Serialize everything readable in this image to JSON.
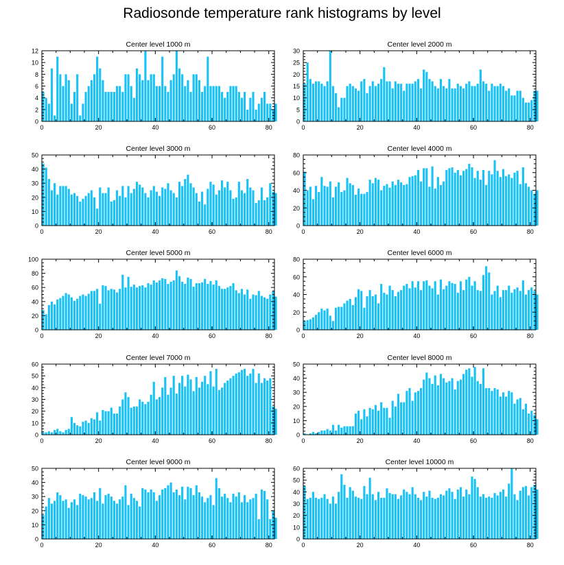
{
  "page": {
    "title": "Radiosonde temperature rank histograms by level"
  },
  "chart_data": [
    {
      "type": "bar",
      "title": "Center level 1000 m",
      "xlim": [
        0,
        82
      ],
      "ylim": [
        0,
        12
      ],
      "xticks": [
        0,
        20,
        40,
        60,
        80
      ],
      "yticks": [
        0,
        2,
        4,
        6,
        8,
        10,
        12
      ],
      "values": [
        5,
        4,
        3,
        9,
        1,
        11,
        8,
        6,
        8,
        7,
        3,
        5,
        8,
        1,
        3,
        5,
        6,
        7,
        8,
        11,
        9,
        7,
        5,
        5,
        5,
        5,
        6,
        6,
        5,
        8,
        8,
        6,
        4,
        9,
        8,
        7,
        12,
        7,
        8,
        8,
        6,
        6,
        11,
        6,
        5,
        7,
        8,
        12,
        9,
        8,
        6,
        7,
        5,
        8,
        8,
        7,
        5,
        6,
        11,
        6,
        6,
        6,
        6,
        5,
        4,
        5,
        6,
        6,
        6,
        5,
        4,
        5,
        2,
        4,
        5,
        2,
        3,
        4,
        5,
        3,
        3,
        2,
        3
      ]
    },
    {
      "type": "bar",
      "title": "Center level 2000 m",
      "xlim": [
        0,
        82
      ],
      "ylim": [
        0,
        30
      ],
      "xticks": [
        0,
        20,
        40,
        60,
        80
      ],
      "yticks": [
        0,
        5,
        10,
        15,
        20,
        25,
        30
      ],
      "values": [
        16,
        25,
        18,
        16,
        17,
        17,
        16,
        15,
        17,
        30,
        15,
        12,
        6,
        10,
        10,
        15,
        16,
        15,
        14,
        13,
        17,
        18,
        12,
        15,
        17,
        15,
        16,
        18,
        23,
        17,
        17,
        14,
        17,
        16,
        16,
        13,
        16,
        16,
        16,
        17,
        18,
        14,
        22,
        21,
        18,
        17,
        15,
        14,
        18,
        15,
        14,
        18,
        14,
        14,
        16,
        15,
        14,
        16,
        17,
        15,
        15,
        16,
        22,
        17,
        16,
        13,
        16,
        15,
        15,
        16,
        15,
        13,
        14,
        11,
        11,
        13,
        13,
        10,
        8,
        8,
        9,
        13,
        13
      ]
    },
    {
      "type": "bar",
      "title": "Center level 3000 m",
      "xlim": [
        0,
        82
      ],
      "ylim": [
        0,
        50
      ],
      "xticks": [
        0,
        20,
        40,
        60,
        80
      ],
      "yticks": [
        0,
        10,
        20,
        30,
        40,
        50
      ],
      "values": [
        44,
        41,
        33,
        25,
        30,
        22,
        28,
        28,
        28,
        26,
        22,
        23,
        21,
        17,
        19,
        21,
        23,
        25,
        20,
        12,
        27,
        23,
        23,
        27,
        17,
        18,
        25,
        21,
        28,
        20,
        28,
        23,
        26,
        31,
        29,
        27,
        23,
        20,
        25,
        28,
        24,
        21,
        27,
        26,
        30,
        25,
        23,
        20,
        31,
        28,
        33,
        36,
        30,
        27,
        23,
        17,
        24,
        15,
        26,
        31,
        29,
        22,
        25,
        32,
        27,
        31,
        25,
        19,
        20,
        31,
        25,
        23,
        33,
        27,
        25,
        16,
        18,
        27,
        18,
        20,
        30,
        24,
        23
      ]
    },
    {
      "type": "bar",
      "title": "Center level 4000 m",
      "xlim": [
        0,
        82
      ],
      "ylim": [
        0,
        80
      ],
      "xticks": [
        0,
        20,
        40,
        60,
        80
      ],
      "yticks": [
        0,
        20,
        40,
        60,
        80
      ],
      "values": [
        61,
        40,
        44,
        30,
        45,
        38,
        55,
        45,
        44,
        50,
        32,
        44,
        49,
        38,
        40,
        54,
        48,
        46,
        35,
        42,
        36,
        36,
        38,
        52,
        48,
        54,
        52,
        40,
        45,
        47,
        43,
        50,
        46,
        52,
        49,
        46,
        47,
        55,
        56,
        57,
        63,
        50,
        65,
        65,
        44,
        67,
        42,
        55,
        46,
        50,
        63,
        65,
        66,
        60,
        63,
        57,
        62,
        64,
        70,
        66,
        54,
        62,
        52,
        63,
        46,
        62,
        58,
        74,
        62,
        55,
        64,
        56,
        58,
        54,
        60,
        62,
        47,
        66,
        48,
        44,
        40,
        36,
        40
      ]
    },
    {
      "type": "bar",
      "title": "Center level 5000 m",
      "xlim": [
        0,
        82
      ],
      "ylim": [
        0,
        100
      ],
      "xticks": [
        0,
        20,
        40,
        60,
        80
      ],
      "yticks": [
        0,
        20,
        40,
        60,
        80,
        100
      ],
      "values": [
        28,
        22,
        35,
        40,
        36,
        43,
        45,
        48,
        52,
        50,
        46,
        41,
        44,
        48,
        50,
        48,
        51,
        55,
        55,
        58,
        37,
        63,
        62,
        56,
        58,
        57,
        53,
        58,
        78,
        60,
        75,
        61,
        64,
        60,
        62,
        63,
        60,
        66,
        64,
        70,
        67,
        70,
        73,
        72,
        65,
        68,
        70,
        84,
        76,
        68,
        65,
        74,
        72,
        61,
        66,
        66,
        67,
        72,
        65,
        69,
        64,
        70,
        62,
        58,
        58,
        60,
        62,
        66,
        56,
        52,
        58,
        50,
        57,
        44,
        50,
        49,
        55,
        48,
        46,
        44,
        50,
        55,
        47
      ]
    },
    {
      "type": "bar",
      "title": "Center level 6000 m",
      "xlim": [
        0,
        82
      ],
      "ylim": [
        0,
        80
      ],
      "xticks": [
        0,
        20,
        40,
        60,
        80
      ],
      "yticks": [
        0,
        20,
        40,
        60,
        80
      ],
      "values": [
        10,
        11,
        12,
        14,
        17,
        20,
        24,
        22,
        24,
        16,
        10,
        25,
        26,
        26,
        30,
        33,
        35,
        28,
        37,
        46,
        44,
        25,
        38,
        45,
        38,
        40,
        30,
        52,
        42,
        40,
        50,
        45,
        38,
        43,
        45,
        50,
        52,
        47,
        55,
        48,
        55,
        45,
        55,
        56,
        50,
        47,
        55,
        40,
        57,
        46,
        50,
        55,
        53,
        52,
        42,
        55,
        45,
        57,
        60,
        50,
        55,
        45,
        44,
        62,
        72,
        65,
        40,
        44,
        50,
        37,
        45,
        45,
        50,
        42,
        46,
        48,
        44,
        56,
        40,
        45,
        48,
        44,
        40
      ]
    },
    {
      "type": "bar",
      "title": "Center level 7000 m",
      "xlim": [
        0,
        82
      ],
      "ylim": [
        0,
        60
      ],
      "xticks": [
        0,
        20,
        40,
        60,
        80
      ],
      "yticks": [
        0,
        10,
        20,
        30,
        40,
        50,
        60
      ],
      "values": [
        2,
        2,
        3,
        2,
        4,
        5,
        3,
        2,
        4,
        5,
        15,
        10,
        8,
        7,
        11,
        12,
        10,
        14,
        13,
        19,
        12,
        21,
        20,
        20,
        23,
        18,
        18,
        24,
        30,
        36,
        32,
        23,
        24,
        24,
        30,
        28,
        26,
        28,
        34,
        45,
        30,
        32,
        40,
        49,
        34,
        40,
        50,
        35,
        44,
        50,
        41,
        51,
        47,
        37,
        49,
        40,
        45,
        50,
        43,
        54,
        41,
        56,
        38,
        40,
        44,
        46,
        48,
        50,
        52,
        53,
        55,
        56,
        50,
        52,
        56,
        44,
        52,
        44,
        48,
        46,
        48,
        24,
        22
      ]
    },
    {
      "type": "bar",
      "title": "Center level 8000 m",
      "xlim": [
        0,
        82
      ],
      "ylim": [
        0,
        50
      ],
      "xticks": [
        0,
        20,
        40,
        60,
        80
      ],
      "yticks": [
        0,
        10,
        20,
        30,
        40,
        50
      ],
      "values": [
        1,
        0,
        1,
        2,
        1,
        2,
        3,
        3,
        4,
        3,
        7,
        3,
        7,
        5,
        6,
        6,
        6,
        6,
        15,
        17,
        11,
        18,
        13,
        19,
        18,
        21,
        17,
        23,
        19,
        19,
        12,
        24,
        20,
        29,
        23,
        23,
        31,
        33,
        24,
        30,
        31,
        33,
        39,
        44,
        40,
        36,
        42,
        35,
        43,
        40,
        37,
        38,
        40,
        32,
        38,
        39,
        43,
        46,
        47,
        41,
        48,
        38,
        36,
        47,
        33,
        33,
        31,
        33,
        32,
        27,
        30,
        27,
        31,
        30,
        22,
        25,
        26,
        18,
        22,
        15,
        17,
        14,
        11
      ]
    },
    {
      "type": "bar",
      "title": "Center level 9000 m",
      "xlim": [
        0,
        82
      ],
      "ylim": [
        0,
        50
      ],
      "xticks": [
        0,
        20,
        40,
        60,
        80
      ],
      "yticks": [
        0,
        10,
        20,
        30,
        40,
        50
      ],
      "values": [
        17,
        23,
        29,
        25,
        27,
        33,
        31,
        27,
        28,
        22,
        26,
        28,
        24,
        32,
        31,
        30,
        28,
        29,
        33,
        27,
        36,
        25,
        31,
        32,
        30,
        27,
        25,
        28,
        30,
        38,
        24,
        32,
        29,
        27,
        23,
        36,
        35,
        33,
        35,
        33,
        27,
        31,
        35,
        36,
        38,
        40,
        33,
        35,
        31,
        37,
        28,
        37,
        36,
        31,
        38,
        33,
        30,
        26,
        29,
        31,
        24,
        43,
        36,
        30,
        32,
        29,
        26,
        32,
        30,
        33,
        26,
        31,
        26,
        28,
        29,
        32,
        14,
        35,
        34,
        28,
        14,
        20,
        15
      ]
    },
    {
      "type": "bar",
      "title": "Center level 10000 m",
      "xlim": [
        0,
        82
      ],
      "ylim": [
        0,
        60
      ],
      "xticks": [
        0,
        20,
        40,
        60,
        80
      ],
      "yticks": [
        0,
        10,
        20,
        30,
        40,
        50,
        60
      ],
      "values": [
        45,
        34,
        35,
        40,
        35,
        34,
        35,
        38,
        34,
        30,
        36,
        30,
        40,
        55,
        46,
        35,
        44,
        41,
        36,
        35,
        34,
        45,
        38,
        52,
        38,
        33,
        40,
        35,
        35,
        43,
        39,
        38,
        38,
        34,
        37,
        42,
        40,
        38,
        44,
        38,
        35,
        33,
        40,
        36,
        41,
        35,
        34,
        35,
        38,
        37,
        41,
        43,
        40,
        34,
        42,
        44,
        36,
        42,
        38,
        53,
        51,
        44,
        36,
        38,
        35,
        36,
        35,
        39,
        37,
        40,
        42,
        36,
        47,
        60,
        38,
        33,
        41,
        44,
        45,
        37,
        44,
        46,
        42
      ]
    }
  ]
}
